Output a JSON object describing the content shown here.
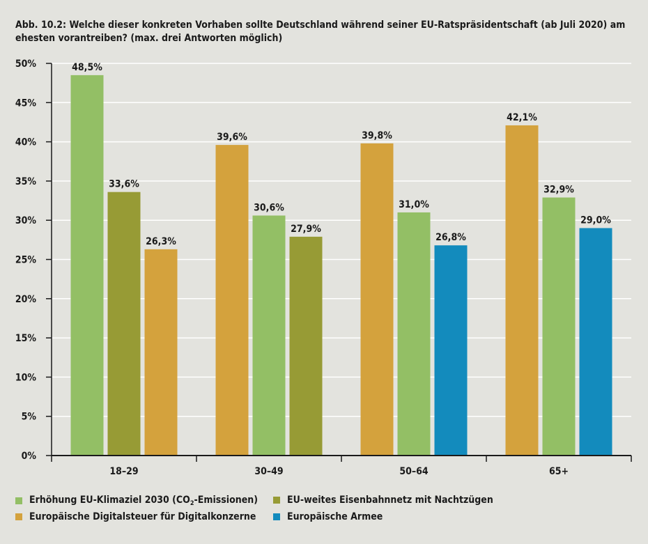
{
  "title": "Abb. 10.2: Welche dieser konkreten Vorhaben sollte Deutschland während seiner EU-Ratspräsidentschaft (ab Juli 2020) am ehesten vorantreiben? (max. drei Antworten möglich)",
  "colors": {
    "klima": "#93bf65",
    "eisenbahn": "#979b35",
    "digital": "#d4a23d",
    "armee": "#138bbd",
    "grid": "#ffffff",
    "axis": "#1a1a1a"
  },
  "chart_data": {
    "type": "bar",
    "ylim": [
      0,
      50
    ],
    "yticks": [
      "0%",
      "5%",
      "10%",
      "15%",
      "20%",
      "25%",
      "30%",
      "35%",
      "40%",
      "45%",
      "50%"
    ],
    "ytick_values": [
      0,
      5,
      10,
      15,
      20,
      25,
      30,
      35,
      40,
      45,
      50
    ],
    "grid": true,
    "legend_position": "bottom",
    "categories": [
      "18–29",
      "30–49",
      "50–64",
      "65+"
    ],
    "groups": [
      {
        "category": "18–29",
        "bars": [
          {
            "series": "klima",
            "value": 48.5,
            "label": "48,5%"
          },
          {
            "series": "eisenbahn",
            "value": 33.6,
            "label": "33,6%"
          },
          {
            "series": "digital",
            "value": 26.3,
            "label": "26,3%"
          }
        ]
      },
      {
        "category": "30–49",
        "bars": [
          {
            "series": "digital",
            "value": 39.6,
            "label": "39,6%"
          },
          {
            "series": "klima",
            "value": 30.6,
            "label": "30,6%"
          },
          {
            "series": "eisenbahn",
            "value": 27.9,
            "label": "27,9%"
          }
        ]
      },
      {
        "category": "50–64",
        "bars": [
          {
            "series": "digital",
            "value": 39.8,
            "label": "39,8%"
          },
          {
            "series": "klima",
            "value": 31.0,
            "label": "31,0%"
          },
          {
            "series": "armee",
            "value": 26.8,
            "label": "26,8%"
          }
        ]
      },
      {
        "category": "65+",
        "bars": [
          {
            "series": "digital",
            "value": 42.1,
            "label": "42,1%"
          },
          {
            "series": "klima",
            "value": 32.9,
            "label": "32,9%"
          },
          {
            "series": "armee",
            "value": 29.0,
            "label": "29,0%"
          }
        ]
      }
    ],
    "series": [
      {
        "key": "klima",
        "name": "Erhöhung EU-Klimaziel 2030 (CO2-Emissionen)",
        "name_pre": "Erhöhung EU-Klimaziel 2030 (CO",
        "name_sub": "2",
        "name_post": "-Emissionen)"
      },
      {
        "key": "eisenbahn",
        "name": "EU-weites Eisenbahnnetz mit Nachtzügen"
      },
      {
        "key": "digital",
        "name": "Europäische Digitalsteuer für Digitalkonzerne"
      },
      {
        "key": "armee",
        "name": "Europäische Armee"
      }
    ]
  }
}
